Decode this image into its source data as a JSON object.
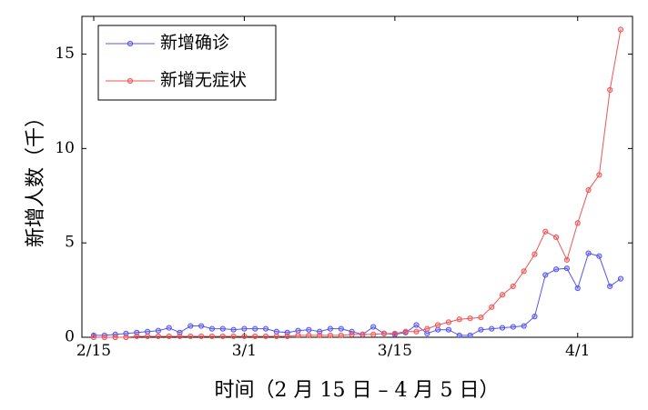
{
  "chart_data": {
    "type": "line",
    "xlabel": "时间（2 月 15 日 – 4 月 5 日）",
    "ylabel": "新增人数（千）",
    "categories": [
      "2/15",
      null,
      null,
      null,
      null,
      null,
      null,
      null,
      null,
      null,
      null,
      null,
      null,
      null,
      "3/1",
      null,
      null,
      null,
      null,
      null,
      null,
      null,
      null,
      null,
      null,
      null,
      null,
      null,
      "3/15",
      null,
      null,
      null,
      null,
      null,
      null,
      null,
      null,
      null,
      null,
      null,
      null,
      null,
      null,
      null,
      null,
      "4/1",
      null,
      null,
      null,
      null
    ],
    "series": [
      {
        "name": "新增确诊",
        "color": "#5555ee",
        "values": [
          0.1,
          0.1,
          0.15,
          0.2,
          0.25,
          0.3,
          0.35,
          0.5,
          0.25,
          0.6,
          0.6,
          0.45,
          0.45,
          0.4,
          0.45,
          0.45,
          0.45,
          0.3,
          0.25,
          0.35,
          0.4,
          0.3,
          0.45,
          0.45,
          0.3,
          0.15,
          0.55,
          0.2,
          0.15,
          0.25,
          0.65,
          0.2,
          0.4,
          0.4,
          0.1,
          0.1,
          0.4,
          0.45,
          0.5,
          0.55,
          0.6,
          1.1,
          3.3,
          3.6,
          3.65,
          2.6,
          4.45,
          4.3,
          2.7,
          3.1
        ]
      },
      {
        "name": "新增无症状",
        "color": "#ee5555",
        "values": [
          0,
          0,
          0,
          0,
          0.05,
          0.05,
          0.05,
          0.05,
          0.05,
          0.05,
          0.05,
          0.05,
          0.05,
          0.05,
          0.05,
          0.05,
          0.05,
          0.05,
          0.05,
          0.1,
          0.1,
          0.1,
          0.1,
          0.1,
          0.15,
          0.15,
          0.15,
          0.2,
          0.2,
          0.3,
          0.3,
          0.45,
          0.65,
          0.8,
          0.95,
          1.0,
          1.05,
          1.6,
          2.25,
          2.7,
          3.5,
          4.4,
          5.6,
          5.3,
          4.1,
          6.05,
          7.8,
          8.6,
          13.1,
          16.3
        ]
      }
    ],
    "ylim": [
      0,
      17
    ],
    "yticks": [
      0,
      5,
      10,
      15
    ],
    "grid": false,
    "legend": "upper-left"
  }
}
